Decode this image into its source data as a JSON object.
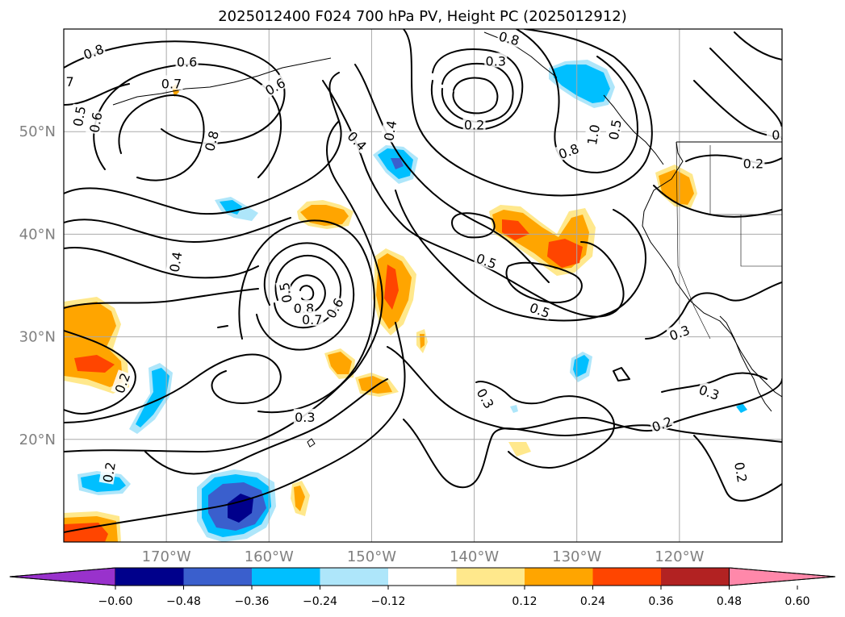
{
  "title": "2025012400 F024 700 hPa PV, Height PC (2025012912)",
  "chart_data": {
    "type": "contour-map",
    "title": "2025012400 F024 700 hPa PV, Height PC (2025012912)",
    "lon_range": [
      -180,
      -110
    ],
    "lat_range": [
      10,
      60
    ],
    "lon_ticks": [
      {
        "lon": -170,
        "label": "170°W"
      },
      {
        "lon": -160,
        "label": "160°W"
      },
      {
        "lon": -150,
        "label": "150°W"
      },
      {
        "lon": -140,
        "label": "140°W"
      },
      {
        "lon": -130,
        "label": "130°W"
      },
      {
        "lon": -120,
        "label": "120°W"
      }
    ],
    "lat_ticks": [
      {
        "lat": 20,
        "label": "20°N"
      },
      {
        "lat": 30,
        "label": "30°N"
      },
      {
        "lat": 40,
        "label": "40°N"
      },
      {
        "lat": 50,
        "label": "50°N"
      }
    ],
    "grid": true,
    "colorbar": {
      "orientation": "horizontal",
      "extend": "both",
      "ticks": [
        "−0.60",
        "−0.48",
        "−0.36",
        "−0.24",
        "−0.12",
        "0.12",
        "0.24",
        "0.36",
        "0.48",
        "0.60"
      ],
      "colors": [
        "#9932cc",
        "#00008b",
        "#3a5fcd",
        "#00bfff",
        "#aee6fa",
        "#ffffff",
        "#ffe88c",
        "#ffa500",
        "#ff4500",
        "#b22222",
        "#ff88aa"
      ]
    },
    "contour_labels": [
      {
        "text": "0.8",
        "lon": -177.1,
        "lat": 57.8,
        "rot": -20
      },
      {
        "text": "0.6",
        "lon": -168,
        "lat": 56.8,
        "rot": 0
      },
      {
        "text": "7",
        "lon": -179.4,
        "lat": 54.9,
        "rot": 0
      },
      {
        "text": "0.7",
        "lon": -169.5,
        "lat": 54.7,
        "rot": 0
      },
      {
        "text": "0.5",
        "lon": -178.5,
        "lat": 51.5,
        "rot": -80
      },
      {
        "text": "0.6",
        "lon": -176.9,
        "lat": 50.9,
        "rot": -80
      },
      {
        "text": "0.6",
        "lon": -159.4,
        "lat": 54.4,
        "rot": -30
      },
      {
        "text": "0.8",
        "lon": -165.6,
        "lat": 49.1,
        "rot": -75
      },
      {
        "text": "0.4",
        "lon": -151.4,
        "lat": 49.1,
        "rot": 45
      },
      {
        "text": "0.4",
        "lon": -148.2,
        "lat": 50.1,
        "rot": -80
      },
      {
        "text": "0.3",
        "lon": -137.9,
        "lat": 56.9,
        "rot": 0
      },
      {
        "text": "0.8",
        "lon": -136.6,
        "lat": 59.1,
        "rot": 15
      },
      {
        "text": "0.2",
        "lon": -140,
        "lat": 50.7,
        "rot": 0
      },
      {
        "text": "0.8",
        "lon": -130.8,
        "lat": 48.1,
        "rot": -20
      },
      {
        "text": "1.0",
        "lon": -128.4,
        "lat": 49.7,
        "rot": -80
      },
      {
        "text": "0.5",
        "lon": -126.3,
        "lat": 50.2,
        "rot": -80
      },
      {
        "text": "0.2",
        "lon": -112.8,
        "lat": 46.9,
        "rot": 0
      },
      {
        "text": "0.",
        "lon": -110.4,
        "lat": 49.7,
        "rot": 0
      },
      {
        "text": "0.4",
        "lon": -169.1,
        "lat": 37.3,
        "rot": -80
      },
      {
        "text": "0.5",
        "lon": -158.4,
        "lat": 34.3,
        "rot": -100
      },
      {
        "text": "0.8",
        "lon": -156.6,
        "lat": 32.8,
        "rot": 0
      },
      {
        "text": "0.7",
        "lon": -155.8,
        "lat": 31.7,
        "rot": 0
      },
      {
        "text": "0.6",
        "lon": -153.6,
        "lat": 32.8,
        "rot": -60
      },
      {
        "text": "0.5",
        "lon": -138.8,
        "lat": 37.4,
        "rot": 20
      },
      {
        "text": "0.5",
        "lon": -133.6,
        "lat": 32.6,
        "rot": 20
      },
      {
        "text": "0.3",
        "lon": -120,
        "lat": 30.4,
        "rot": -20
      },
      {
        "text": "0.2",
        "lon": -174.3,
        "lat": 25.5,
        "rot": -70
      },
      {
        "text": "0.3",
        "lon": -156.5,
        "lat": 22.2,
        "rot": 0
      },
      {
        "text": "0.3",
        "lon": -138.9,
        "lat": 24,
        "rot": 60
      },
      {
        "text": "0.3",
        "lon": -117.1,
        "lat": 24.6,
        "rot": 20
      },
      {
        "text": "0.2",
        "lon": -121.7,
        "lat": 21.5,
        "rot": -20
      },
      {
        "text": "0.2",
        "lon": -175.6,
        "lat": 16.8,
        "rot": -80
      },
      {
        "text": "0.2",
        "lon": -114,
        "lat": 16.8,
        "rot": 80
      }
    ]
  }
}
